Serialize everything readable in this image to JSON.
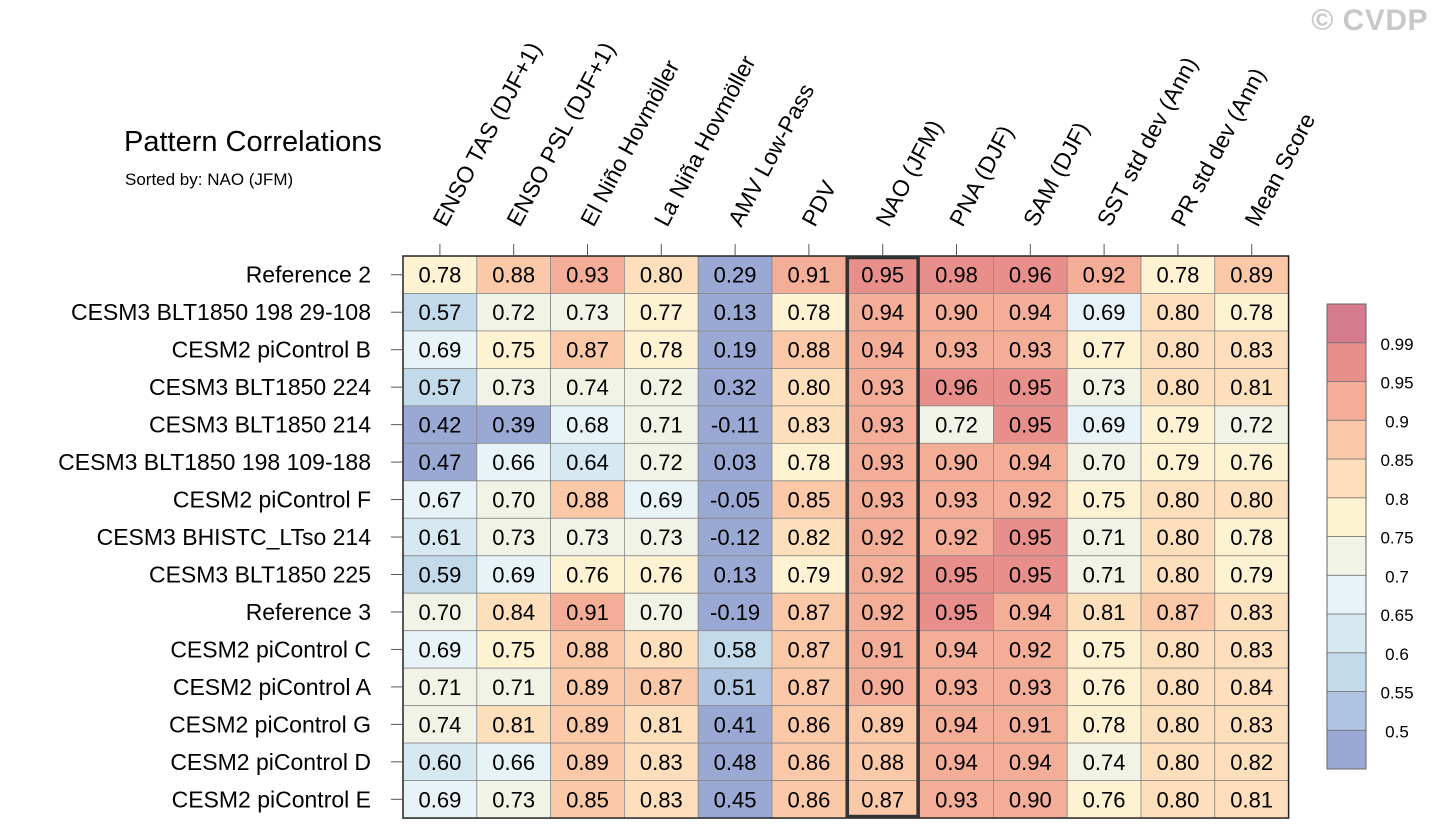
{
  "watermark": "© CVDP",
  "chart_data": {
    "type": "heatmap",
    "title": "Pattern Correlations",
    "subtitle": "Sorted by: NAO (JFM)",
    "highlighted_column": "NAO (JFM)",
    "columns": [
      "ENSO TAS (DJF+1)",
      "ENSO PSL (DJF+1)",
      "El Niño Hovmöller",
      "La Niña Hovmöller",
      "AMV Low-Pass",
      "PDV",
      "NAO (JFM)",
      "PNA (DJF)",
      "SAM (DJF)",
      "SST std dev (Ann)",
      "PR std dev (Ann)",
      "Mean Score"
    ],
    "rows": [
      "Reference 2",
      "CESM3 BLT1850 198 29-108",
      "CESM2 piControl B",
      "CESM3 BLT1850 224",
      "CESM3 BLT1850 214",
      "CESM3 BLT1850 198 109-188",
      "CESM2 piControl F",
      "CESM3 BHISTC_LTso 214",
      "CESM3 BLT1850 225",
      "Reference 3",
      "CESM2 piControl C",
      "CESM2 piControl A",
      "CESM2 piControl G",
      "CESM2 piControl D",
      "CESM2 piControl E"
    ],
    "values": [
      [
        "0.78",
        "0.88",
        "0.93",
        "0.80",
        "0.29",
        "0.91",
        "0.95",
        "0.98",
        "0.96",
        "0.92",
        "0.78",
        "0.89"
      ],
      [
        "0.57",
        "0.72",
        "0.73",
        "0.77",
        "0.13",
        "0.78",
        "0.94",
        "0.90",
        "0.94",
        "0.69",
        "0.80",
        "0.78"
      ],
      [
        "0.69",
        "0.75",
        "0.87",
        "0.78",
        "0.19",
        "0.88",
        "0.94",
        "0.93",
        "0.93",
        "0.77",
        "0.80",
        "0.83"
      ],
      [
        "0.57",
        "0.73",
        "0.74",
        "0.72",
        "0.32",
        "0.80",
        "0.93",
        "0.96",
        "0.95",
        "0.73",
        "0.80",
        "0.81"
      ],
      [
        "0.42",
        "0.39",
        "0.68",
        "0.71",
        "-0.11",
        "0.83",
        "0.93",
        "0.72",
        "0.95",
        "0.69",
        "0.79",
        "0.72"
      ],
      [
        "0.47",
        "0.66",
        "0.64",
        "0.72",
        "0.03",
        "0.78",
        "0.93",
        "0.90",
        "0.94",
        "0.70",
        "0.79",
        "0.76"
      ],
      [
        "0.67",
        "0.70",
        "0.88",
        "0.69",
        "-0.05",
        "0.85",
        "0.93",
        "0.93",
        "0.92",
        "0.75",
        "0.80",
        "0.80"
      ],
      [
        "0.61",
        "0.73",
        "0.73",
        "0.73",
        "-0.12",
        "0.82",
        "0.92",
        "0.92",
        "0.95",
        "0.71",
        "0.80",
        "0.78"
      ],
      [
        "0.59",
        "0.69",
        "0.76",
        "0.76",
        "0.13",
        "0.79",
        "0.92",
        "0.95",
        "0.95",
        "0.71",
        "0.80",
        "0.79"
      ],
      [
        "0.70",
        "0.84",
        "0.91",
        "0.70",
        "-0.19",
        "0.87",
        "0.92",
        "0.95",
        "0.94",
        "0.81",
        "0.87",
        "0.83"
      ],
      [
        "0.69",
        "0.75",
        "0.88",
        "0.80",
        "0.58",
        "0.87",
        "0.91",
        "0.94",
        "0.92",
        "0.75",
        "0.80",
        "0.83"
      ],
      [
        "0.71",
        "0.71",
        "0.89",
        "0.87",
        "0.51",
        "0.87",
        "0.90",
        "0.93",
        "0.93",
        "0.76",
        "0.80",
        "0.84"
      ],
      [
        "0.74",
        "0.81",
        "0.89",
        "0.81",
        "0.41",
        "0.86",
        "0.89",
        "0.94",
        "0.91",
        "0.78",
        "0.80",
        "0.83"
      ],
      [
        "0.60",
        "0.66",
        "0.89",
        "0.83",
        "0.48",
        "0.86",
        "0.88",
        "0.94",
        "0.94",
        "0.74",
        "0.80",
        "0.82"
      ],
      [
        "0.69",
        "0.73",
        "0.85",
        "0.83",
        "0.45",
        "0.86",
        "0.87",
        "0.93",
        "0.90",
        "0.76",
        "0.80",
        "0.81"
      ]
    ],
    "colorbar": {
      "levels": [
        "0.5",
        "0.55",
        "0.6",
        "0.65",
        "0.7",
        "0.75",
        "0.8",
        "0.85",
        "0.9",
        "0.95",
        "0.99"
      ],
      "thresholds": [
        0.5,
        0.55,
        0.6,
        0.65,
        0.7,
        0.75,
        0.8,
        0.85,
        0.9,
        0.95,
        0.99
      ],
      "colors": [
        "#9aa9d3",
        "#afc4e1",
        "#c2dae9",
        "#d6e8f0",
        "#e7f3f7",
        "#f2f3e7",
        "#fdf2d1",
        "#fde0bb",
        "#fbc9a8",
        "#f4ad97",
        "#e88f8b",
        "#d67b8f"
      ]
    }
  }
}
